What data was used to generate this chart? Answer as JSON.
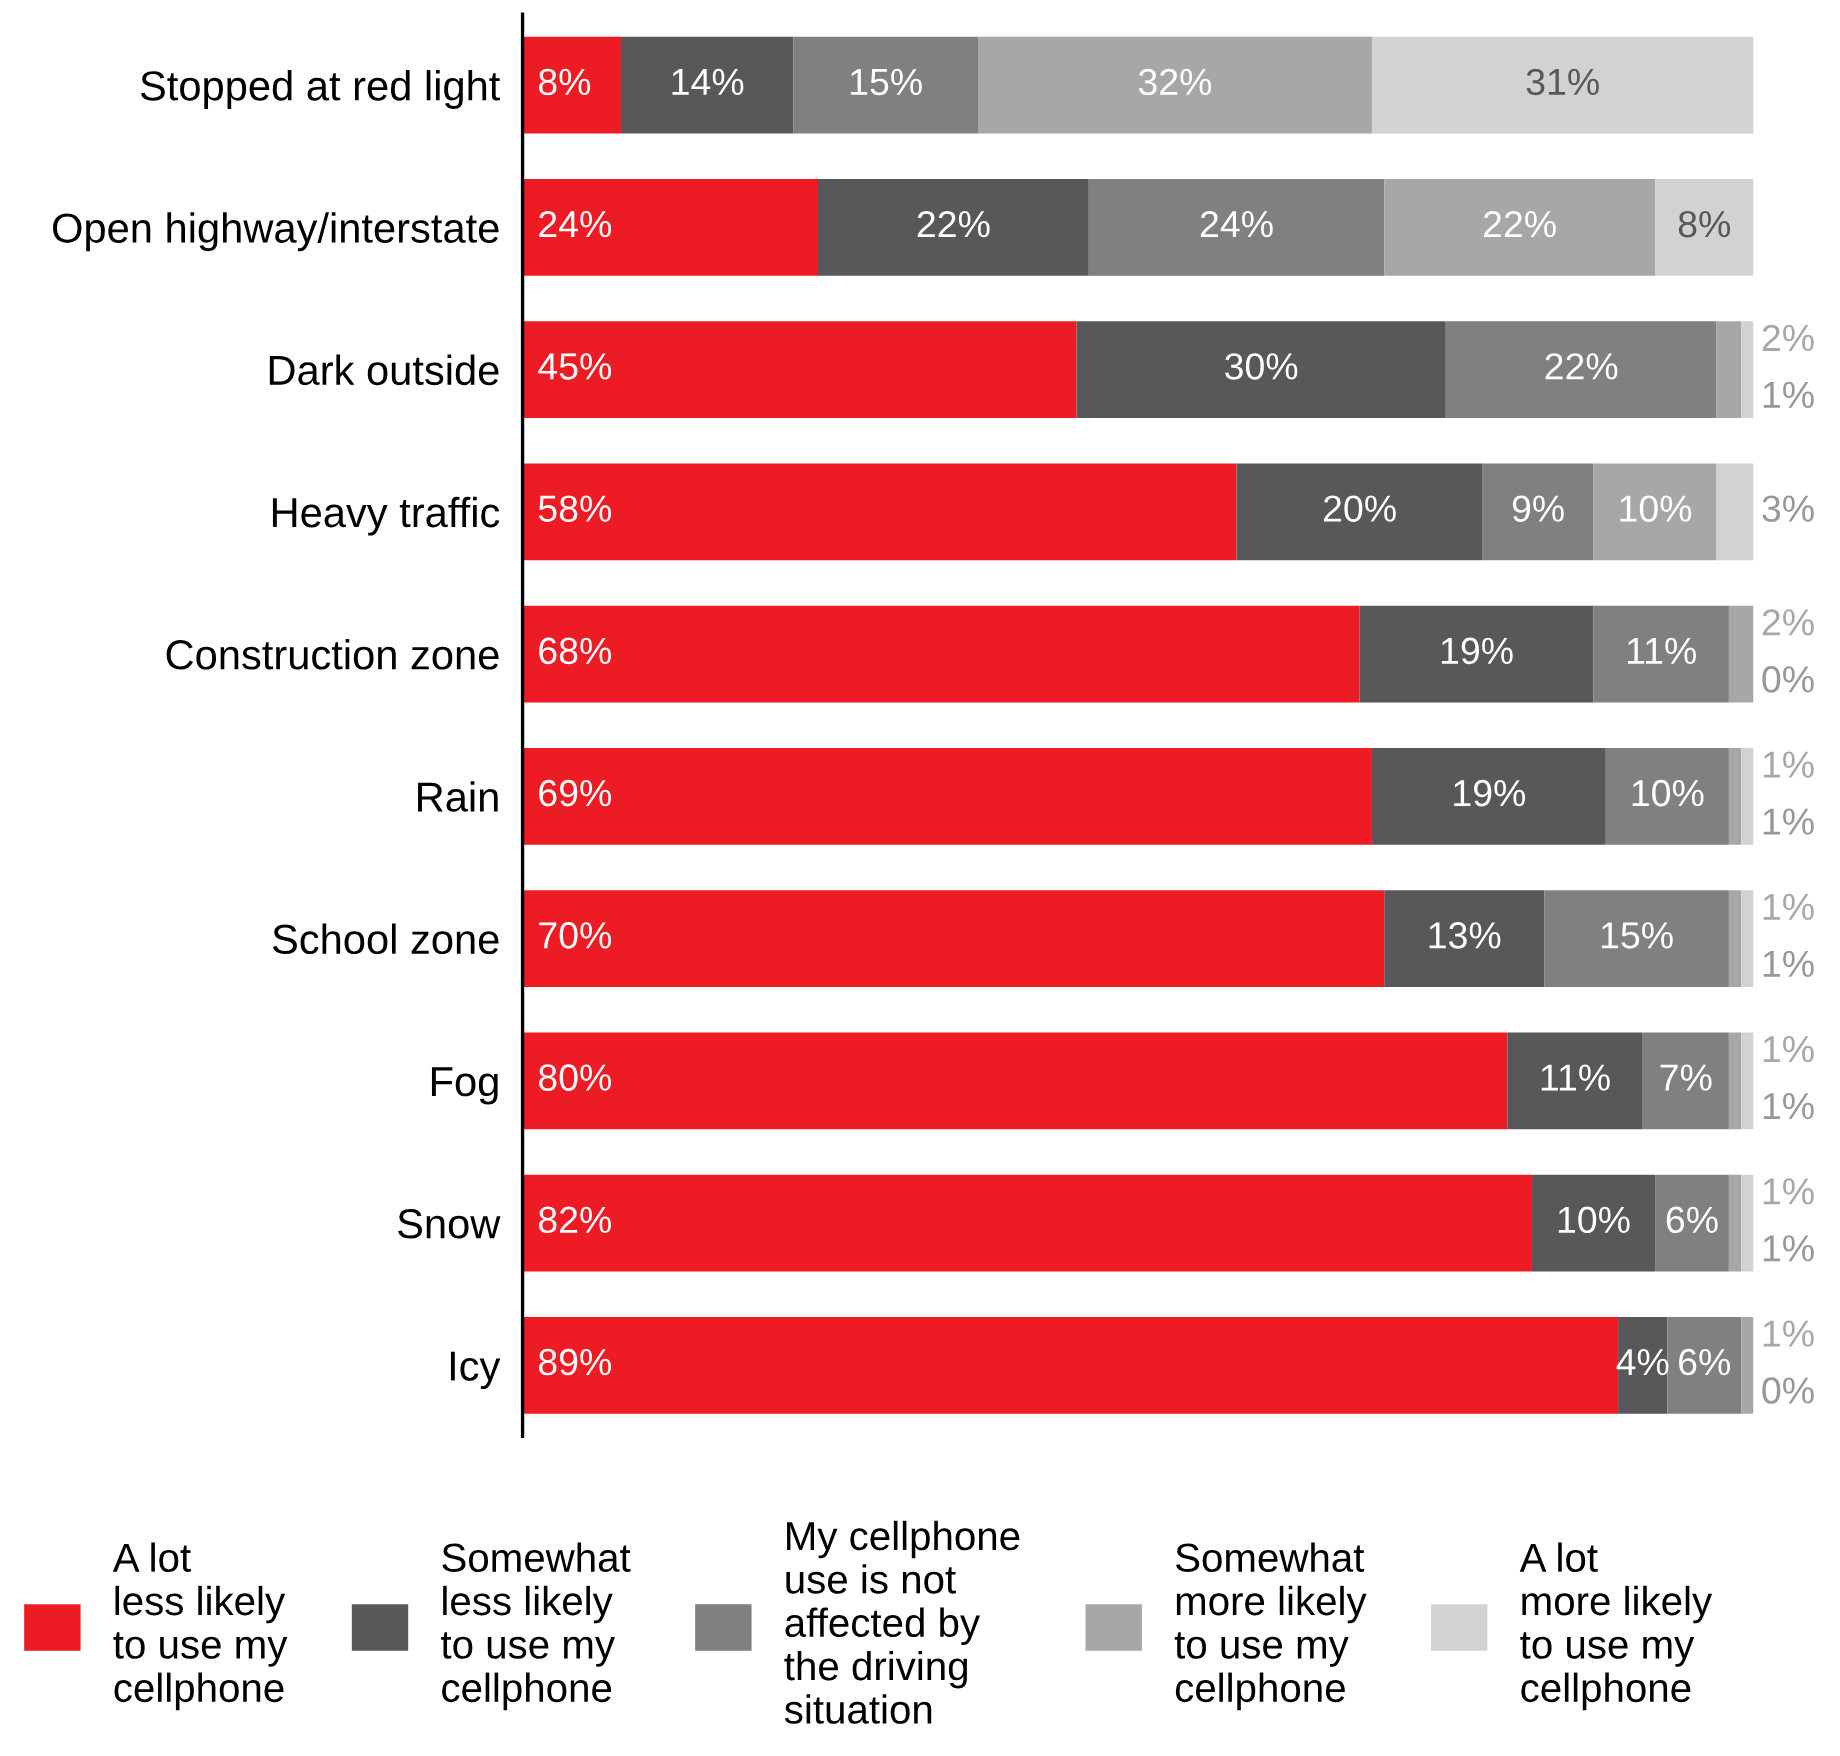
{
  "chart_data": {
    "type": "bar",
    "orientation": "horizontal",
    "stacked": true,
    "legend": "bottom",
    "grid": false,
    "tick_labels": "y",
    "categories": [
      "Stopped at red light",
      "Open highway/interstate",
      "Dark outside",
      "Heavy traffic",
      "Construction zone",
      "Rain",
      "School zone",
      "Fog",
      "Snow",
      "Icy"
    ],
    "series": [
      {
        "name": "A lot\nless likely\nto use my\ncellphone",
        "color": "#ed1c24",
        "values": [
          8,
          24,
          45,
          58,
          68,
          69,
          70,
          80,
          82,
          89
        ],
        "value_labels": [
          "8%",
          "24%",
          "45%",
          "58%",
          "68%",
          "69%",
          "70%",
          "80%",
          "82%",
          "89%"
        ]
      },
      {
        "name": "Somewhat\nless likely\nto use my\ncellphone",
        "color": "#58585a",
        "values": [
          14,
          22,
          30,
          20,
          19,
          19,
          13,
          11,
          10,
          4
        ],
        "value_labels": [
          "14%",
          "22%",
          "30%",
          "20%",
          "19%",
          "19%",
          "13%",
          "11%",
          "10%",
          "4%"
        ]
      },
      {
        "name": "My cellphone\nuse is not\naffected by\nthe driving\nsituation",
        "color": "#808083",
        "values": [
          15,
          24,
          22,
          9,
          11,
          10,
          15,
          7,
          6,
          6
        ],
        "value_labels": [
          "15%",
          "24%",
          "22%",
          "9%",
          "11%",
          "10%",
          "15%",
          "7%",
          "6%",
          "6%"
        ]
      },
      {
        "name": "Somewhat\nmore likely\nto use my\ncellphone",
        "color": "#a7a7a9",
        "values": [
          32,
          22,
          2,
          10,
          2,
          1,
          1,
          1,
          1,
          1
        ],
        "value_labels": [
          "32%",
          "22%",
          "2%",
          "10%",
          "2%",
          "1%",
          "1%",
          "1%",
          "1%",
          "1%"
        ]
      },
      {
        "name": "A lot\nmore likely\nto use my\ncellphone",
        "color": "#d1d2d4",
        "values": [
          31,
          8,
          1,
          3,
          0,
          1,
          1,
          1,
          1,
          0
        ],
        "value_labels": [
          "31%",
          "8%",
          "1%",
          "3%",
          "0%",
          "1%",
          "1%",
          "1%",
          "1%",
          "0%"
        ]
      }
    ]
  }
}
